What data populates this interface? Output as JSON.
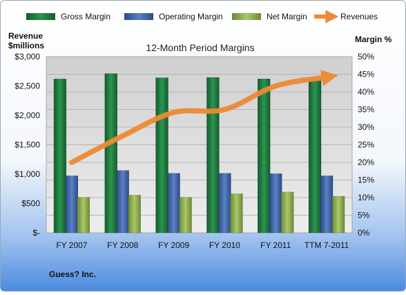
{
  "company": "Guess? Inc.",
  "chart_data": {
    "type": "bar",
    "title": "12-Month Period Margins",
    "categories": [
      "FY 2007",
      "FY 2008",
      "FY 2009",
      "FY 2010",
      "FY 2011",
      "TTM 7-2011"
    ],
    "series": [
      {
        "name": "Gross Margin",
        "axis": "right",
        "unit": "%",
        "values": [
          43.7,
          45.2,
          44.0,
          44.1,
          43.7,
          43.4
        ],
        "color": "#1e7a3e"
      },
      {
        "name": "Operating Margin",
        "axis": "right",
        "unit": "%",
        "values": [
          16.2,
          17.7,
          16.9,
          16.9,
          16.8,
          16.2
        ],
        "color": "#3b62a8"
      },
      {
        "name": "Net Margin",
        "axis": "right",
        "unit": "%",
        "values": [
          10.1,
          10.7,
          10.1,
          11.1,
          11.6,
          10.4
        ],
        "color": "#8fb04e"
      },
      {
        "name": "Revenues",
        "axis": "left",
        "type": "line",
        "unit": "$millions",
        "values": [
          1200,
          1650,
          2050,
          2100,
          2500,
          2650
        ],
        "color": "#ee8a35"
      }
    ],
    "left_axis": {
      "label_line1": "Revenue",
      "label_line2": "$millions",
      "ylim": [
        0,
        3000
      ],
      "ticks": [
        0,
        500,
        1000,
        1500,
        2000,
        2500,
        3000
      ],
      "tick_labels": [
        "$-",
        "$500",
        "$1,000",
        "$1,500",
        "$2,000",
        "$2,500",
        "$3,000"
      ]
    },
    "right_axis": {
      "label": "Margin %",
      "ylim": [
        0,
        50
      ],
      "ticks": [
        0,
        5,
        10,
        15,
        20,
        25,
        30,
        35,
        40,
        45,
        50
      ],
      "tick_labels": [
        "0%",
        "5%",
        "10%",
        "15%",
        "20%",
        "25%",
        "30%",
        "35%",
        "40%",
        "45%",
        "50%"
      ]
    },
    "grid": true,
    "legend_position": "top"
  }
}
